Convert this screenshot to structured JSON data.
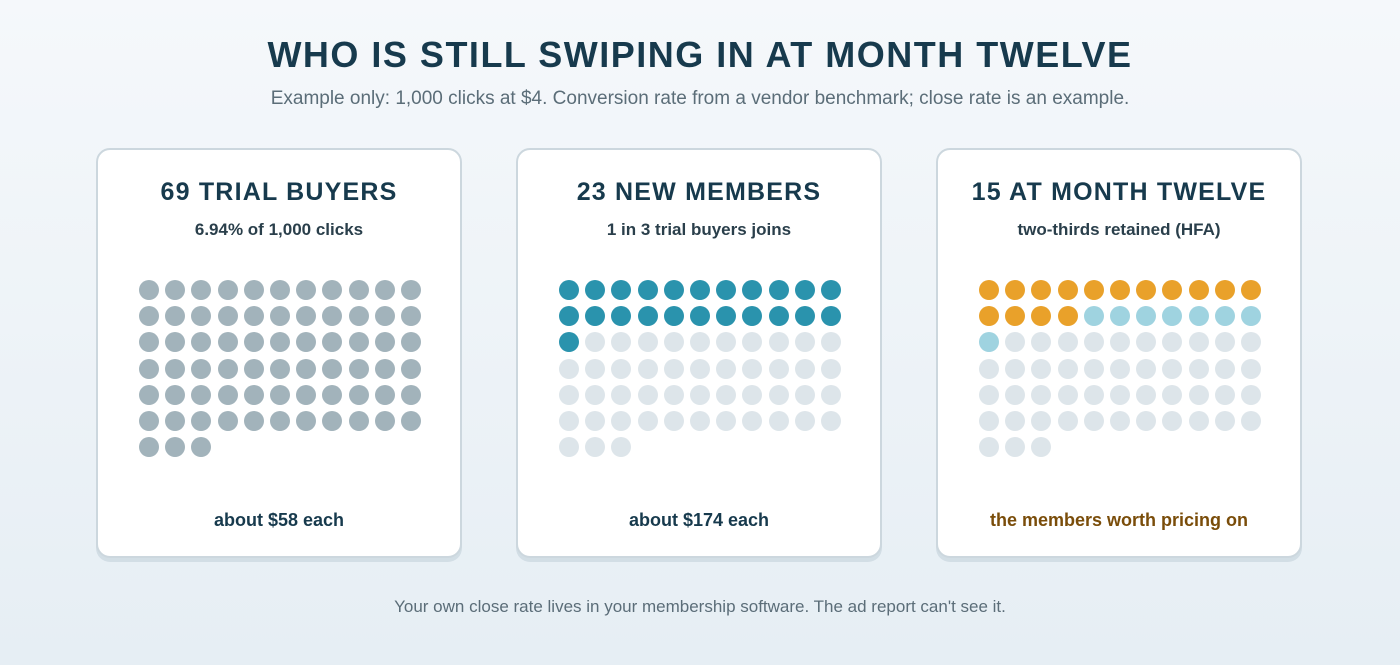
{
  "title": "WHO IS STILL SWIPING IN AT MONTH TWELVE",
  "subtitle": "Example only: 1,000 clicks at $4. Conversion rate from a vendor benchmark; close rate is an example.",
  "footer": "Your own close rate lives in your membership software. The ad report can't see it.",
  "colors": {
    "trial": "#a2b3bb",
    "member": "#2a93ad",
    "retained": "#e9a12a",
    "lapsed": "#9fd3e0",
    "empty": "#dde5ea",
    "highlight_text": "#7a4d0a"
  },
  "chart_data": {
    "type": "unit-dot",
    "total_dots_per_panel": 69,
    "panels": [
      {
        "title": "69 TRIAL BUYERS",
        "subtitle": "6.94% of 1,000 clicks",
        "footer": "about $58 each",
        "segments": [
          {
            "category": "trial buyers",
            "count": 69,
            "color": "trial"
          }
        ]
      },
      {
        "title": "23 NEW MEMBERS",
        "subtitle": "1 in 3 trial buyers joins",
        "footer": "about $174 each",
        "segments": [
          {
            "category": "new members",
            "count": 23,
            "color": "member"
          },
          {
            "category": "did not join",
            "count": 46,
            "color": "empty"
          }
        ]
      },
      {
        "title": "15 AT MONTH TWELVE",
        "subtitle": "two-thirds retained (HFA)",
        "footer": "the members worth pricing on",
        "footer_highlight": true,
        "segments": [
          {
            "category": "retained at month twelve",
            "count": 15,
            "color": "retained"
          },
          {
            "category": "members who lapsed",
            "count": 8,
            "color": "lapsed"
          },
          {
            "category": "did not join",
            "count": 46,
            "color": "empty"
          }
        ]
      }
    ]
  }
}
